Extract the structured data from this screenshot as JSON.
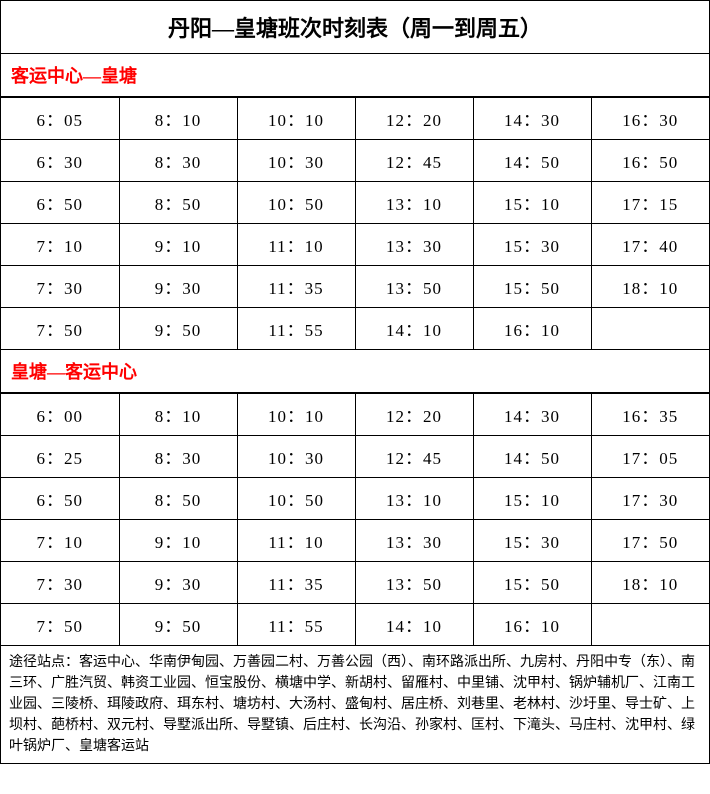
{
  "title": "丹阳—皇塘班次时刻表（周一到周五）",
  "colors": {
    "border": "#000000",
    "header_text": "#ff0000",
    "text": "#000000",
    "background": "#ffffff"
  },
  "sections": [
    {
      "header": "客运中心—皇塘",
      "rows": [
        [
          "6：05",
          "8：10",
          "10：10",
          "12：20",
          "14：30",
          "16：30"
        ],
        [
          "6：30",
          "8：30",
          "10：30",
          "12：45",
          "14：50",
          "16：50"
        ],
        [
          "6：50",
          "8：50",
          "10：50",
          "13：10",
          "15：10",
          "17：15"
        ],
        [
          "7：10",
          "9：10",
          "11：10",
          "13：30",
          "15：30",
          "17：40"
        ],
        [
          "7：30",
          "9：30",
          "11：35",
          "13：50",
          "15：50",
          "18：10"
        ],
        [
          "7：50",
          "9：50",
          "11：55",
          "14：10",
          "16：10",
          ""
        ]
      ]
    },
    {
      "header": "皇塘—客运中心",
      "rows": [
        [
          "6：00",
          "8：10",
          "10：10",
          "12：20",
          "14：30",
          "16：35"
        ],
        [
          "6：25",
          "8：30",
          "10：30",
          "12：45",
          "14：50",
          "17：05"
        ],
        [
          "6：50",
          "8：50",
          "10：50",
          "13：10",
          "15：10",
          "17：30"
        ],
        [
          "7：10",
          "9：10",
          "11：10",
          "13：30",
          "15：30",
          "17：50"
        ],
        [
          "7：30",
          "9：30",
          "11：35",
          "13：50",
          "15：50",
          "18：10"
        ],
        [
          "7：50",
          "9：50",
          "11：55",
          "14：10",
          "16：10",
          ""
        ]
      ]
    }
  ],
  "footer": "途径站点：客运中心、华南伊甸园、万善园二村、万善公园（西）、南环路派出所、九房村、丹阳中专（东）、南三环、广胜汽贸、韩资工业园、恒宝股份、横塘中学、新胡村、留雁村、中里铺、沈甲村、锅炉辅机厂、江南工业园、三陵桥、珥陵政府、珥东村、塘坊村、大汤村、盛甸村、居庄桥、刘巷里、老林村、沙圩里、导士矿、上坝村、葩桥村、双元村、导墅派出所、导墅镇、后庄村、长沟沿、孙家村、匡村、下滝头、马庄村、沈甲村、绿叶锅炉厂、皇塘客运站"
}
